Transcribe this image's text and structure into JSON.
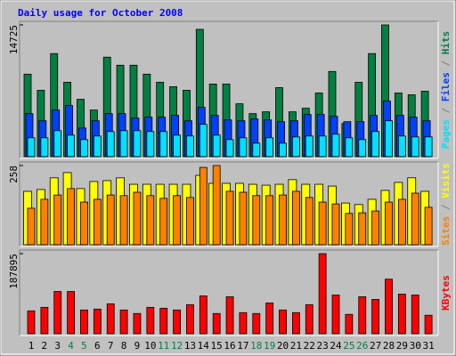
{
  "title": "Daily usage for October 2008",
  "legend_separator": "/",
  "chart_data": [
    {
      "type": "bar",
      "ylim": [
        0,
        14725
      ],
      "yticks": [
        14725
      ],
      "series": [
        {
          "name": "Hits",
          "color": "#008040",
          "values": [
            9220,
            7415,
            11520,
            8315,
            6410,
            5210,
            11120,
            10220,
            10220,
            9220,
            8315,
            7815,
            7415,
            14230,
            8115,
            8115,
            5910,
            4810,
            5010,
            7715,
            5010,
            5410,
            7115,
            9520,
            3710,
            8315,
            11520,
            14725,
            7115,
            6915,
            7315
          ]
        },
        {
          "name": "Files",
          "color": "#0040ff",
          "values": [
            4810,
            4010,
            5210,
            5710,
            3205,
            4010,
            4810,
            4810,
            4310,
            4410,
            4410,
            4610,
            4010,
            5510,
            4610,
            4110,
            4010,
            4210,
            4110,
            3910,
            4010,
            4710,
            4710,
            4510,
            3910,
            3910,
            4610,
            6210,
            4610,
            4410,
            4010
          ]
        },
        {
          "name": "Pages",
          "color": "#00e0ff",
          "values": [
            2105,
            2105,
            2905,
            2405,
            1905,
            2305,
            2805,
            2905,
            2905,
            2805,
            2805,
            2405,
            2305,
            3610,
            2405,
            1905,
            2105,
            1505,
            2105,
            1505,
            2205,
            2305,
            2305,
            2505,
            2105,
            1905,
            2805,
            4010,
            2305,
            2205,
            2205
          ]
        }
      ]
    },
    {
      "type": "bar",
      "ylim": [
        0,
        258
      ],
      "yticks": [
        258
      ],
      "series": [
        {
          "name": "Visits",
          "color": "#ffff00",
          "values": [
            174,
            180,
            218,
            235,
            183,
            206,
            209,
            218,
            197,
            197,
            197,
            197,
            197,
            226,
            200,
            200,
            200,
            197,
            194,
            197,
            212,
            197,
            197,
            191,
            136,
            131,
            148,
            177,
            203,
            218,
            174
          ]
        },
        {
          "name": "Sites",
          "color": "#ff8000",
          "values": [
            119,
            148,
            162,
            183,
            139,
            148,
            162,
            160,
            171,
            160,
            151,
            160,
            154,
            252,
            258,
            174,
            171,
            160,
            160,
            162,
            174,
            154,
            139,
            133,
            102,
            104,
            110,
            139,
            148,
            168,
            122
          ]
        }
      ]
    },
    {
      "type": "bar",
      "ylim": [
        0,
        187895
      ],
      "yticks": [
        187895
      ],
      "categories": [
        "1",
        "2",
        "3",
        "4",
        "5",
        "6",
        "7",
        "8",
        "9",
        "10",
        "11",
        "12",
        "13",
        "14",
        "15",
        "16",
        "17",
        "18",
        "19",
        "20",
        "21",
        "22",
        "23",
        "24",
        "25",
        "26",
        "27",
        "28",
        "29",
        "30",
        "31"
      ],
      "category_colors": [
        "#000000",
        "#000000",
        "#000000",
        "#008040",
        "#008040",
        "#000000",
        "#000000",
        "#000000",
        "#000000",
        "#000000",
        "#008040",
        "#008040",
        "#000000",
        "#000000",
        "#000000",
        "#000000",
        "#000000",
        "#008040",
        "#008040",
        "#000000",
        "#000000",
        "#000000",
        "#000000",
        "#000000",
        "#008040",
        "#008040",
        "#000000",
        "#000000",
        "#000000",
        "#000000",
        "#000000"
      ],
      "series": [
        {
          "name": "KBytes",
          "color": "#ff0000",
          "values": [
            53690,
            61950,
            99120,
            99120,
            55755,
            57820,
            70210,
            55755,
            47495,
            61950,
            59885,
            55755,
            68145,
            88795,
            47495,
            86730,
            49560,
            47495,
            72275,
            55755,
            49560,
            68145,
            187895,
            90860,
            45430,
            86730,
            80535,
            128030,
            92925,
            90860,
            43365
          ]
        }
      ]
    }
  ]
}
